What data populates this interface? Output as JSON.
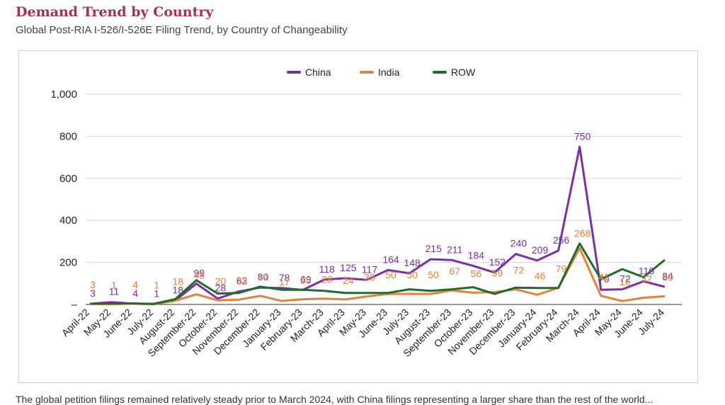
{
  "page": {
    "title": "Demand Trend by Country",
    "subtitle": "Global Post-RIA I-526/I-526E Filing Trend, by Country of Changeability",
    "footer": "The global petition filings remained relatively steady prior to March 2024, with China filings representing a larger share than the rest of the world..."
  },
  "chart_data": {
    "type": "line",
    "categories": [
      "April-22",
      "May-22",
      "June-22",
      "July-22",
      "August-22",
      "September-22",
      "October-22",
      "November-22",
      "December-22",
      "January-23",
      "February-23",
      "March-23",
      "April-23",
      "May-23",
      "June-23",
      "July-23",
      "August-23",
      "September-23",
      "October-23",
      "November-23",
      "December-23",
      "January-24",
      "February-24",
      "March-24",
      "April-24",
      "May-24",
      "June-24",
      "July-24"
    ],
    "ylim": [
      0,
      1000
    ],
    "yticks": [
      0,
      200,
      400,
      600,
      800,
      1000
    ],
    "ytick_labels": [
      "–",
      "200",
      "400",
      "600",
      "800",
      "1,000"
    ],
    "grid": true,
    "legend_position": "top-center",
    "series": [
      {
        "name": "China",
        "color": "#7b2fa6",
        "values": [
          3,
          11,
          4,
          1,
          18,
          99,
          28,
          62,
          80,
          78,
          69,
          118,
          125,
          117,
          164,
          148,
          215,
          211,
          184,
          152,
          240,
          209,
          256,
          750,
          70,
          72,
          110,
          84
        ],
        "labels": [
          "3",
          "11",
          "4",
          "1",
          "18",
          "99",
          "28",
          "62",
          "80",
          "78",
          "69",
          "118",
          "125",
          "117",
          "164",
          "148",
          "215",
          "211",
          "184",
          "152",
          "240",
          "209",
          "256",
          "750",
          "70",
          "72",
          "110",
          "84"
        ]
      },
      {
        "name": "India",
        "color": "#e8803a",
        "values": [
          3,
          1,
          4,
          1,
          18,
          48,
          20,
          23,
          41,
          17,
          25,
          28,
          24,
          38,
          50,
          50,
          50,
          67,
          56,
          59,
          72,
          46,
          79,
          268,
          41,
          16,
          32,
          39
        ],
        "labels": [
          "3",
          "1",
          "4",
          "1",
          "18",
          "48",
          "20",
          "23",
          "41",
          "17",
          "25",
          "28",
          "24",
          "38",
          "50",
          "50",
          "50",
          "67",
          "56",
          "59",
          "72",
          "46",
          "79",
          "268",
          "41",
          "16",
          "32",
          "39"
        ]
      },
      {
        "name": "ROW",
        "color": "#1f6b2b",
        "values": [
          3,
          5,
          5,
          3,
          25,
          115,
          52,
          55,
          85,
          70,
          70,
          65,
          55,
          55,
          55,
          72,
          65,
          72,
          82,
          50,
          80,
          78,
          78,
          290,
          120,
          168,
          130,
          212
        ]
      }
    ]
  }
}
